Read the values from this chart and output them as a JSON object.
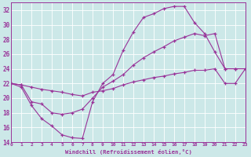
{
  "xlabel": "Windchill (Refroidissement éolien,°C)",
  "background_color": "#cce8e8",
  "grid_color": "#aacccc",
  "line_color": "#993399",
  "xlim": [
    0,
    23
  ],
  "ylim": [
    14,
    33
  ],
  "xticks": [
    0,
    1,
    2,
    3,
    4,
    5,
    6,
    7,
    8,
    9,
    10,
    11,
    12,
    13,
    14,
    15,
    16,
    17,
    18,
    19,
    20,
    21,
    22,
    23
  ],
  "yticks": [
    14,
    16,
    18,
    20,
    22,
    24,
    26,
    28,
    30,
    32
  ],
  "curve1_x": [
    0,
    1,
    2,
    3,
    4,
    5,
    6,
    7,
    8,
    9,
    10,
    11,
    12,
    13,
    14,
    15,
    16,
    17,
    18,
    19,
    20,
    21,
    22,
    23
  ],
  "curve1_y": [
    22.0,
    21.5,
    19.0,
    17.2,
    16.2,
    15.0,
    14.6,
    14.5,
    19.5,
    22.0,
    23.2,
    26.5,
    29.0,
    31.0,
    31.5,
    32.2,
    32.5,
    32.5,
    30.3,
    28.8,
    26.3,
    24.0,
    24.0,
    24.0
  ],
  "curve2_x": [
    0,
    1,
    2,
    3,
    4,
    5,
    6,
    7,
    8,
    9,
    10,
    11,
    12,
    13,
    14,
    15,
    16,
    17,
    18,
    19,
    20,
    21,
    22,
    23
  ],
  "curve2_y": [
    22.0,
    21.8,
    19.5,
    19.2,
    18.0,
    17.8,
    18.0,
    18.5,
    20.0,
    21.5,
    22.3,
    23.2,
    24.5,
    25.5,
    26.3,
    27.0,
    27.8,
    28.3,
    28.8,
    28.5,
    28.8,
    24.0,
    24.0,
    24.0
  ],
  "curve3_x": [
    0,
    1,
    2,
    3,
    4,
    5,
    6,
    7,
    8,
    9,
    10,
    11,
    12,
    13,
    14,
    15,
    16,
    17,
    18,
    19,
    20,
    21,
    22,
    23
  ],
  "curve3_y": [
    22.0,
    21.8,
    21.5,
    21.2,
    21.0,
    20.8,
    20.5,
    20.3,
    20.8,
    21.0,
    21.3,
    21.8,
    22.2,
    22.5,
    22.8,
    23.0,
    23.3,
    23.5,
    23.8,
    23.8,
    24.0,
    22.0,
    22.0,
    24.0
  ]
}
